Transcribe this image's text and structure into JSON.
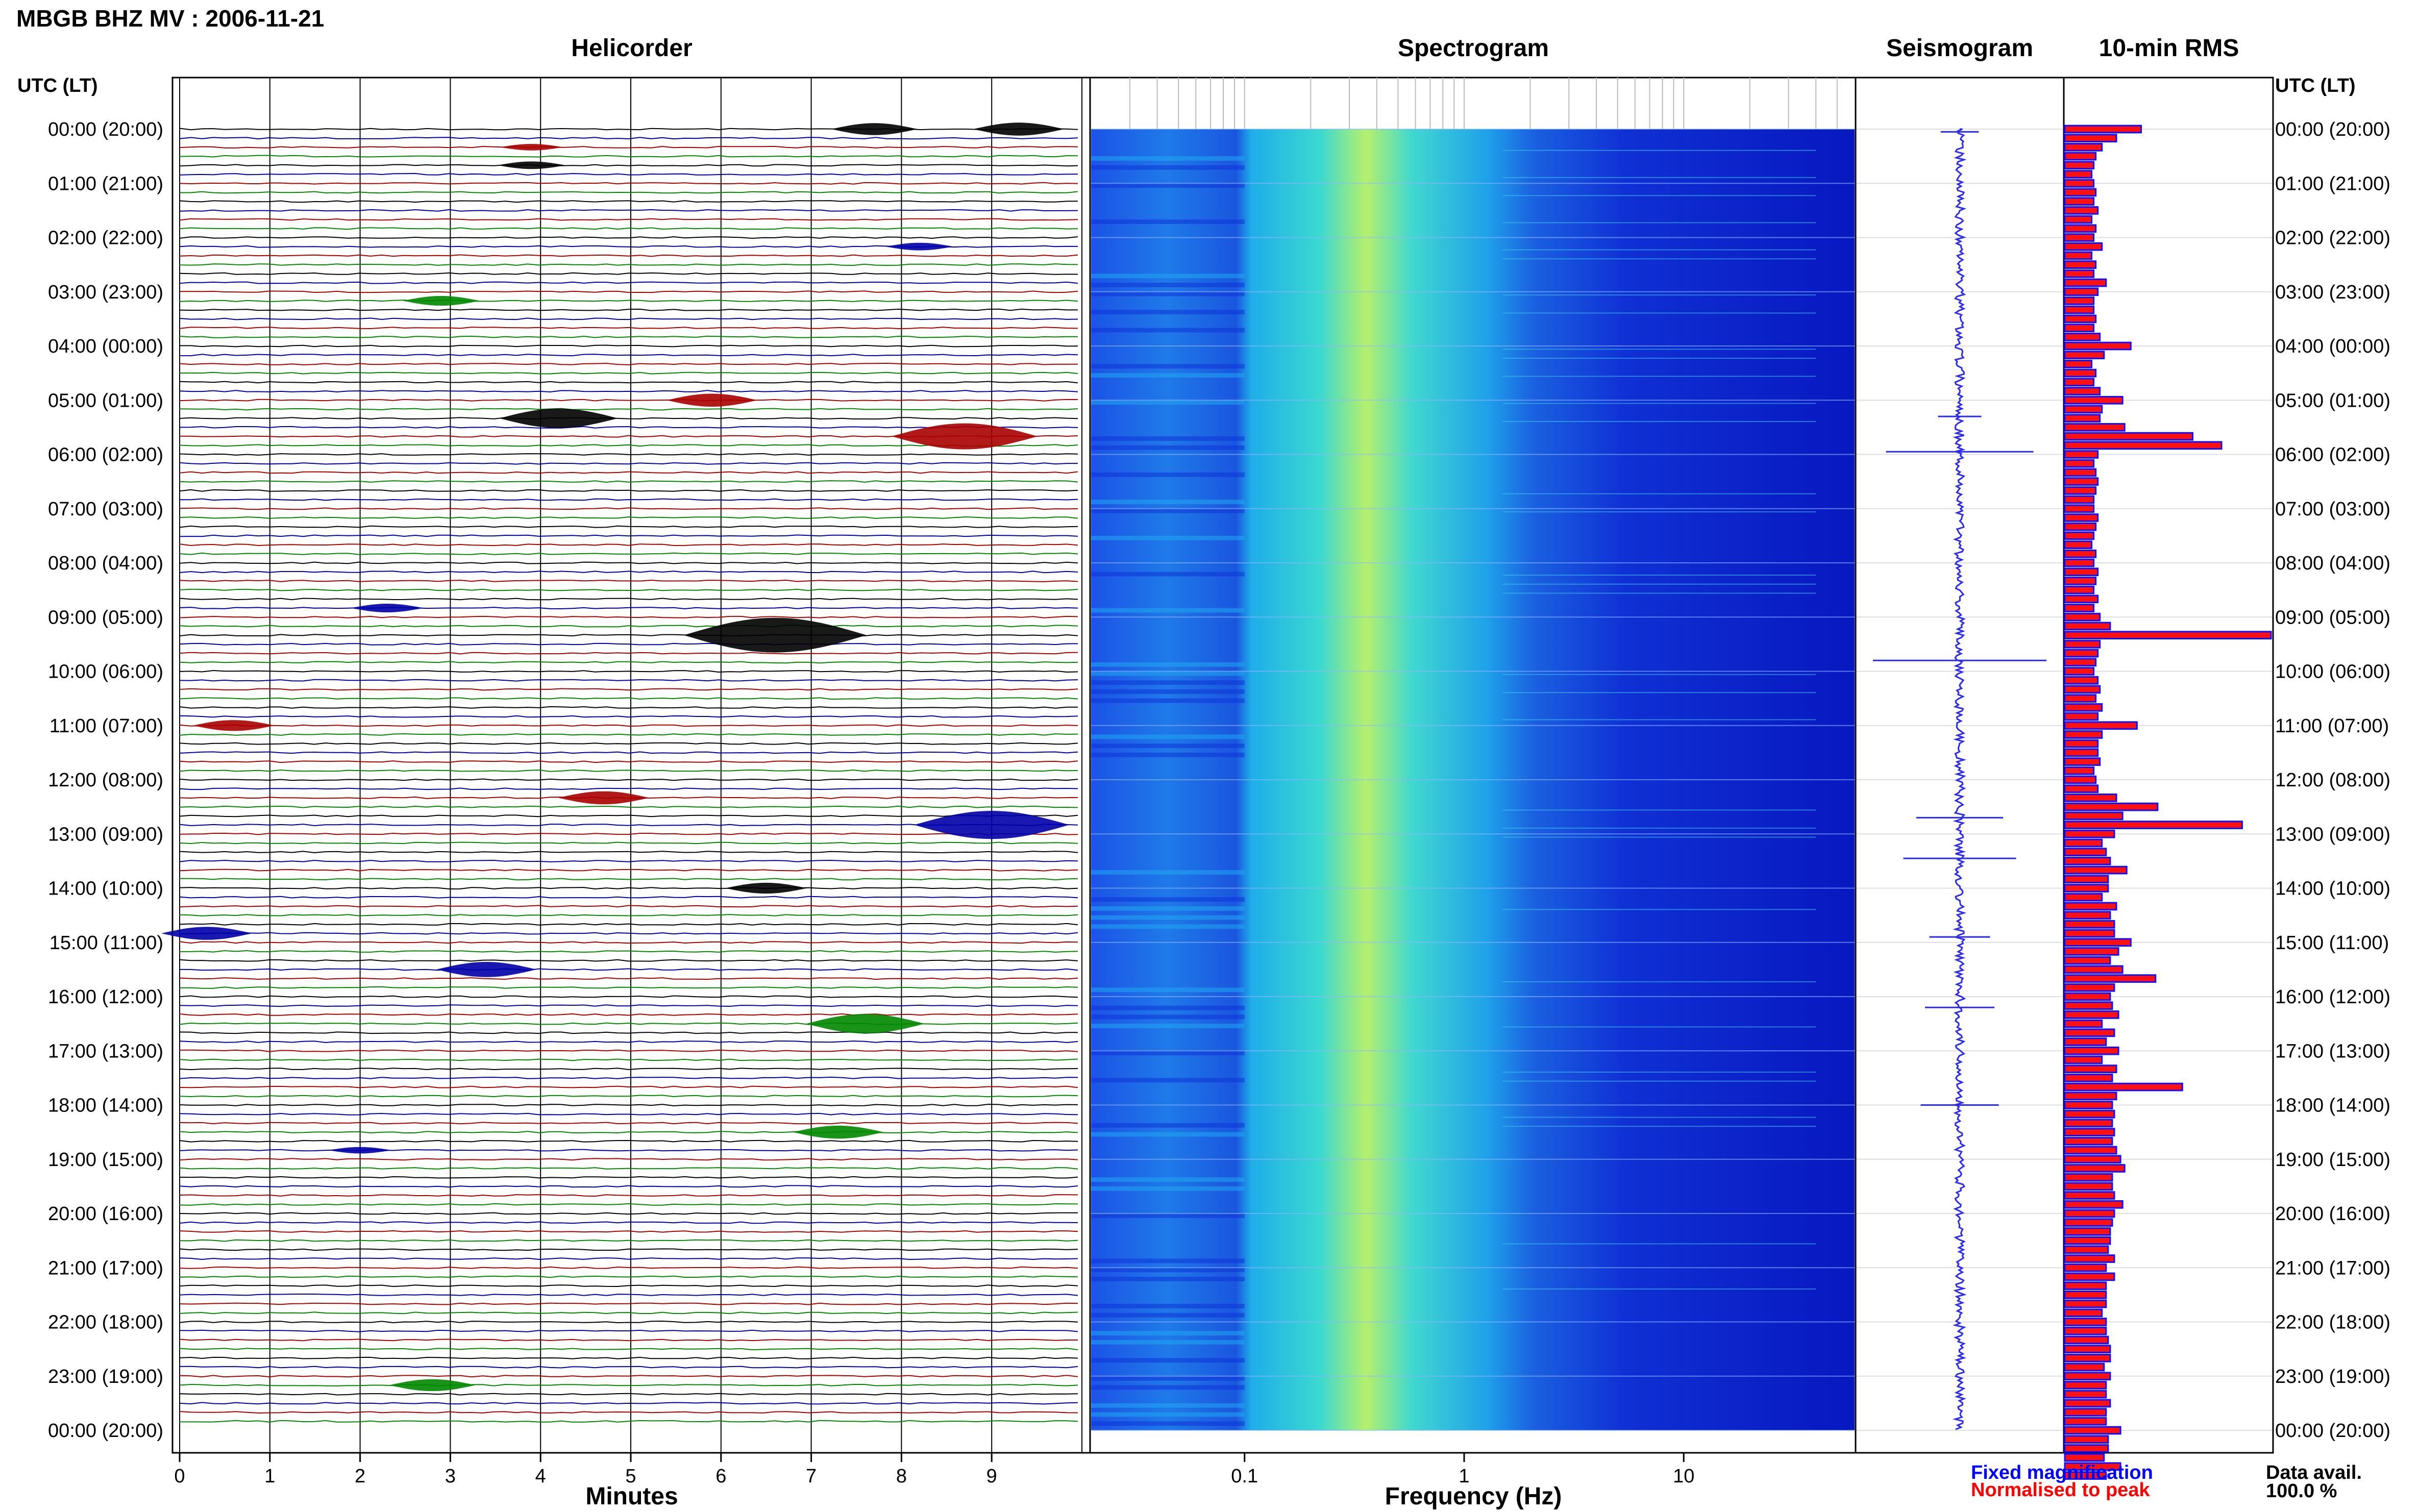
{
  "figure": {
    "title": "MBGB BHZ MV : 2006-11-21",
    "panels": {
      "helicorder": "Helicorder",
      "spectrogram": "Spectrogram",
      "seismogram": "Seismogram",
      "rms": "10-min RMS"
    },
    "y_axis_header": "UTC (LT)",
    "time_labels": [
      "00:00 (20:00)",
      "01:00 (21:00)",
      "02:00 (22:00)",
      "03:00 (23:00)",
      "04:00 (00:00)",
      "05:00 (01:00)",
      "06:00 (02:00)",
      "07:00 (03:00)",
      "08:00 (04:00)",
      "09:00 (05:00)",
      "10:00 (06:00)",
      "11:00 (07:00)",
      "12:00 (08:00)",
      "13:00 (09:00)",
      "14:00 (10:00)",
      "15:00 (11:00)",
      "16:00 (12:00)",
      "17:00 (13:00)",
      "18:00 (14:00)",
      "19:00 (15:00)",
      "20:00 (16:00)",
      "21:00 (17:00)",
      "22:00 (18:00)",
      "23:00 (19:00)",
      "00:00 (20:00)"
    ],
    "helicorder_xlabel": "Minutes",
    "helicorder_ticks": [
      "0",
      "1",
      "2",
      "3",
      "4",
      "5",
      "6",
      "7",
      "8",
      "9"
    ],
    "spectrogram_xlabel": "Frequency (Hz)",
    "spectrogram_ticks": [
      "0.1",
      "1",
      "10"
    ],
    "legend": {
      "fixed": "Fixed magnification",
      "normalised": "Normalised to peak",
      "fixed_color": "#0000ff",
      "normalised_color": "#ff0000"
    },
    "data_avail_label": "Data avail.",
    "data_avail_value": "100.0 %"
  },
  "chart_data": [
    {
      "type": "line",
      "panel": "Helicorder",
      "xlabel": "Minutes",
      "xlim": [
        0,
        10
      ],
      "rows_per_hour": 6,
      "trace_colors": [
        "#000000",
        "#0000aa",
        "#aa0000",
        "#008800"
      ],
      "events": [
        {
          "row": 0,
          "minute": 7.7,
          "amp": 0.55
        },
        {
          "row": 0,
          "minute": 9.3,
          "amp": 0.6
        },
        {
          "row": 2,
          "minute": 3.9,
          "amp": 0.3
        },
        {
          "row": 4,
          "minute": 3.9,
          "amp": 0.35
        },
        {
          "row": 13,
          "minute": 8.2,
          "amp": 0.35
        },
        {
          "row": 19,
          "minute": 2.9,
          "amp": 0.45
        },
        {
          "row": 30,
          "minute": 5.9,
          "amp": 0.6
        },
        {
          "row": 32,
          "minute": 4.2,
          "amp": 0.9
        },
        {
          "row": 34,
          "minute": 8.7,
          "amp": 1.2
        },
        {
          "row": 53,
          "minute": 2.3,
          "amp": 0.4
        },
        {
          "row": 56,
          "minute": 6.6,
          "amp": 1.6
        },
        {
          "row": 66,
          "minute": 0.6,
          "amp": 0.5
        },
        {
          "row": 74,
          "minute": 4.7,
          "amp": 0.6
        },
        {
          "row": 77,
          "minute": 9.0,
          "amp": 1.3
        },
        {
          "row": 84,
          "minute": 6.5,
          "amp": 0.5
        },
        {
          "row": 89,
          "minute": 0.3,
          "amp": 0.6
        },
        {
          "row": 93,
          "minute": 3.4,
          "amp": 0.7
        },
        {
          "row": 99,
          "minute": 7.6,
          "amp": 0.9
        },
        {
          "row": 111,
          "minute": 7.3,
          "amp": 0.6
        },
        {
          "row": 113,
          "minute": 2.0,
          "amp": 0.3
        },
        {
          "row": 139,
          "minute": 2.8,
          "amp": 0.55
        }
      ]
    },
    {
      "type": "heatmap",
      "panel": "Spectrogram",
      "xlabel": "Frequency (Hz)",
      "xscale": "log",
      "xlim": [
        0.02,
        60
      ],
      "ticks": [
        0.1,
        1,
        10
      ],
      "peak_frequency_hz": 0.4,
      "colormap": [
        "#0b24d8",
        "#1f6ef0",
        "#1fb3f0",
        "#3fe0c8",
        "#c8f060"
      ]
    },
    {
      "type": "line",
      "panel": "Seismogram",
      "spikes": [
        {
          "hour": 0.05,
          "amp": 0.22
        },
        {
          "hour": 5.3,
          "amp": 0.25
        },
        {
          "hour": 5.95,
          "amp": 0.85
        },
        {
          "hour": 9.8,
          "amp": 1.0
        },
        {
          "hour": 12.7,
          "amp": 0.5
        },
        {
          "hour": 13.45,
          "amp": 0.65
        },
        {
          "hour": 14.9,
          "amp": 0.35
        },
        {
          "hour": 16.2,
          "amp": 0.4
        },
        {
          "hour": 18.0,
          "amp": 0.45
        }
      ]
    },
    {
      "type": "bar",
      "panel": "10-min RMS",
      "orientation": "horizontal",
      "normalised_to_peak": true,
      "values": [
        0.37,
        0.25,
        0.18,
        0.15,
        0.14,
        0.13,
        0.14,
        0.15,
        0.14,
        0.16,
        0.13,
        0.15,
        0.14,
        0.18,
        0.13,
        0.15,
        0.14,
        0.2,
        0.16,
        0.14,
        0.14,
        0.15,
        0.14,
        0.17,
        0.32,
        0.19,
        0.13,
        0.15,
        0.14,
        0.17,
        0.28,
        0.18,
        0.17,
        0.29,
        0.62,
        0.76,
        0.16,
        0.14,
        0.15,
        0.16,
        0.15,
        0.14,
        0.14,
        0.16,
        0.15,
        0.14,
        0.13,
        0.15,
        0.14,
        0.16,
        0.15,
        0.14,
        0.16,
        0.14,
        0.17,
        0.22,
        1.0,
        0.17,
        0.16,
        0.15,
        0.14,
        0.16,
        0.17,
        0.15,
        0.18,
        0.16,
        0.35,
        0.18,
        0.16,
        0.16,
        0.17,
        0.14,
        0.15,
        0.16,
        0.25,
        0.45,
        0.28,
        0.86,
        0.24,
        0.18,
        0.2,
        0.22,
        0.3,
        0.21,
        0.21,
        0.18,
        0.25,
        0.22,
        0.24,
        0.24,
        0.32,
        0.26,
        0.22,
        0.28,
        0.44,
        0.24,
        0.22,
        0.23,
        0.26,
        0.18,
        0.24,
        0.2,
        0.26,
        0.18,
        0.25,
        0.23,
        0.57,
        0.25,
        0.23,
        0.24,
        0.23,
        0.24,
        0.23,
        0.25,
        0.27,
        0.29,
        0.23,
        0.23,
        0.24,
        0.28,
        0.24,
        0.23,
        0.22,
        0.22,
        0.21,
        0.24,
        0.2,
        0.24,
        0.2,
        0.2,
        0.2,
        0.18,
        0.2,
        0.2,
        0.21,
        0.22,
        0.22,
        0.19,
        0.22,
        0.2,
        0.2,
        0.22,
        0.2,
        0.2,
        0.27,
        0.21,
        0.21,
        0.19,
        0.27,
        0.2
      ]
    }
  ]
}
